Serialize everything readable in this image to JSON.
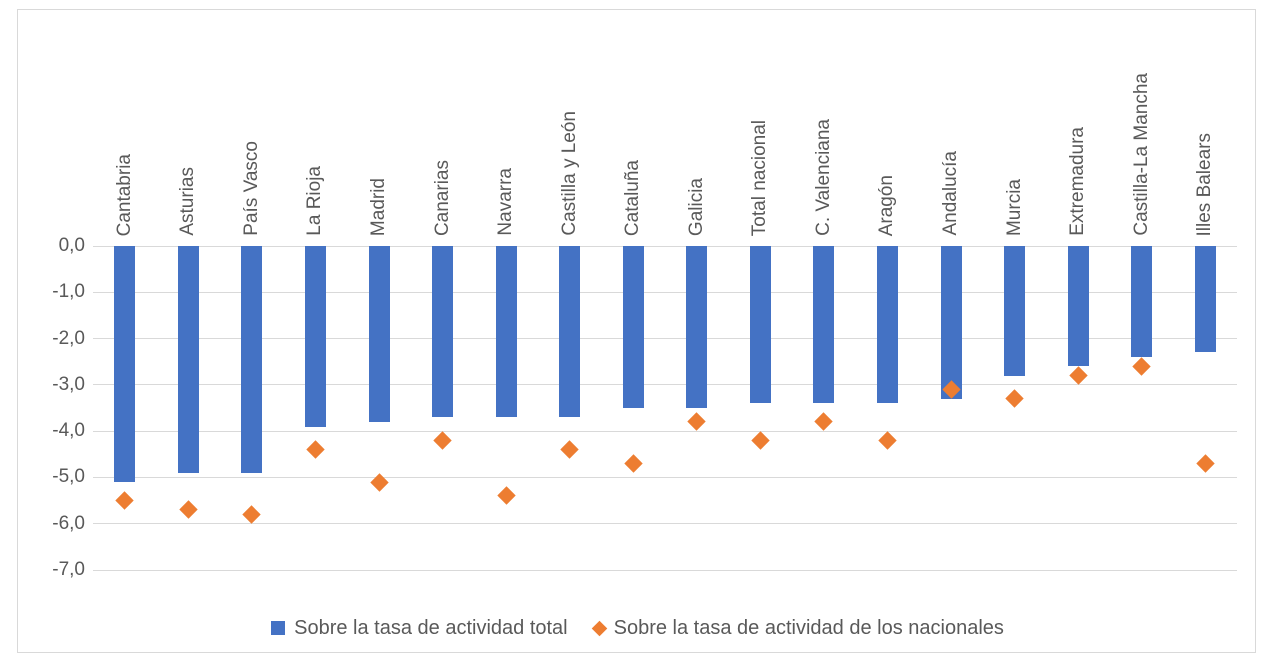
{
  "chart_data": {
    "type": "bar",
    "title": "",
    "xlabel": "",
    "ylabel": "",
    "categories": [
      "Cantabria",
      "Asturias",
      "País Vasco",
      "La Rioja",
      "Madrid",
      "Canarias",
      "Navarra",
      "Castilla y León",
      "Cataluña",
      "Galicia",
      "Total nacional",
      "C. Valenciana",
      "Aragón",
      "Andalucía",
      "Murcia",
      "Extremadura",
      "Castilla-La Mancha",
      "Illes Balears"
    ],
    "series": [
      {
        "name": "Sobre la tasa de actividad total",
        "type": "bar",
        "color": "#4472C4",
        "values": [
          -5.1,
          -4.9,
          -4.9,
          -3.9,
          -3.8,
          -3.7,
          -3.7,
          -3.7,
          -3.5,
          -3.5,
          -3.4,
          -3.4,
          -3.4,
          -3.3,
          -2.8,
          -2.6,
          -2.4,
          -2.3
        ]
      },
      {
        "name": "Sobre la tasa de actividad de los nacionales",
        "type": "scatter",
        "marker": "diamond",
        "color": "#ED7D31",
        "values": [
          -5.5,
          -5.7,
          -5.8,
          -4.4,
          -5.1,
          -4.2,
          -5.4,
          -4.4,
          -4.7,
          -3.8,
          -4.2,
          -3.8,
          -4.2,
          -3.1,
          -3.3,
          -2.8,
          -2.6,
          -4.7
        ]
      }
    ],
    "ylim": [
      -7,
      0
    ],
    "yticks": [
      0,
      -1,
      -2,
      -3,
      -4,
      -5,
      -6,
      -7
    ],
    "ytick_labels": [
      "0,0",
      "-1,0",
      "-2,0",
      "-3,0",
      "-4,0",
      "-5,0",
      "-6,0",
      "-7,0"
    ],
    "grid": true,
    "legend_position": "bottom",
    "colors": {
      "bar": "#4472C4",
      "marker": "#ED7D31",
      "gridline": "#D9D9D9",
      "axis_text": "#595959",
      "chart_border": "#D9D9D9",
      "background": "#FFFFFF"
    }
  }
}
